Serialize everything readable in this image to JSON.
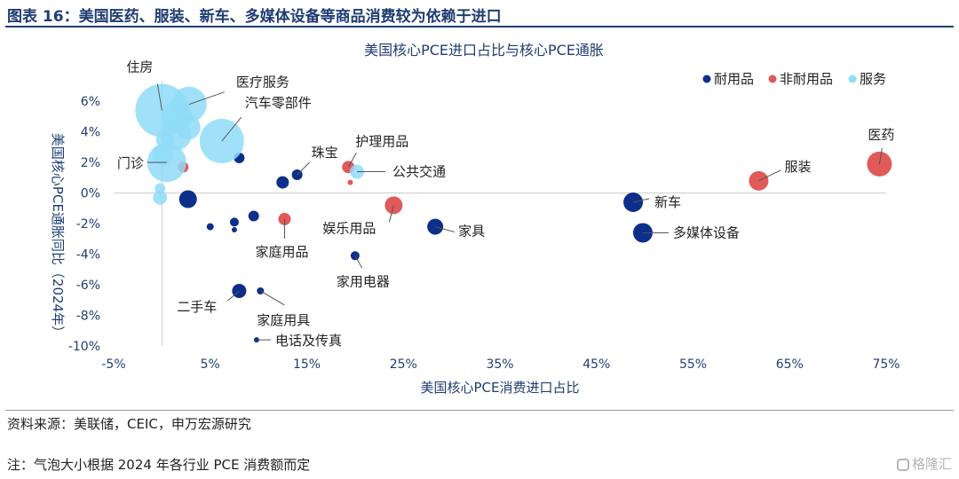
{
  "figure_title": "图表 16：美国医药、服装、新车、多媒体设备等商品消费较为依赖于进口",
  "source": "资料来源：美联储，CEIC，申万宏源研究",
  "note": "注：气泡大小根据 2024 年各行业 PCE 消费额而定",
  "watermark": "格隆汇",
  "colors": {
    "title": "#1f3d73",
    "durable": "#0d2f8a",
    "nondurable": "#e05a5a",
    "services": "#8fdcf8"
  },
  "chart_data": {
    "type": "scatter",
    "title": "美国核心PCE进口占比与核心PCE通胀",
    "xlabel": "美国核心PCE消费进口占比",
    "ylabel": "美国核心PCE通胀同比（2024年）",
    "xlim": [
      -5,
      75
    ],
    "ylim": [
      -10,
      7
    ],
    "x_ticks": [
      "-5%",
      "5%",
      "15%",
      "25%",
      "35%",
      "45%",
      "55%",
      "65%",
      "75%"
    ],
    "y_ticks": [
      "6%",
      "4%",
      "2%",
      "0%",
      "-2%",
      "-4%",
      "-6%",
      "-8%",
      "-10%"
    ],
    "legend_position": "top-right",
    "series": [
      {
        "name": "耐用品",
        "points": [
          {
            "x": 8,
            "y": 2.3,
            "size": 6,
            "label": ""
          },
          {
            "x": 12.5,
            "y": 0.7,
            "size": 7,
            "label": ""
          },
          {
            "x": 14,
            "y": 1.2,
            "size": 6,
            "label": "珠宝"
          },
          {
            "x": 2.7,
            "y": -0.4,
            "size": 10,
            "label": ""
          },
          {
            "x": 5,
            "y": -2.2,
            "size": 4,
            "label": ""
          },
          {
            "x": 7.5,
            "y": -1.9,
            "size": 5,
            "label": ""
          },
          {
            "x": 7.5,
            "y": -2.4,
            "size": 3,
            "label": ""
          },
          {
            "x": 9.5,
            "y": -1.5,
            "size": 6,
            "label": ""
          },
          {
            "x": 28.3,
            "y": -2.2,
            "size": 9,
            "label": "家具"
          },
          {
            "x": 20,
            "y": -4.1,
            "size": 5,
            "label": "家用电器"
          },
          {
            "x": 48.8,
            "y": -0.6,
            "size": 11,
            "label": "新车"
          },
          {
            "x": 49.8,
            "y": -2.6,
            "size": 11,
            "label": "多媒体设备"
          },
          {
            "x": 8,
            "y": -6.4,
            "size": 8,
            "label": "二手车"
          },
          {
            "x": 10.2,
            "y": -6.4,
            "size": 4,
            "label": "家庭用具"
          },
          {
            "x": 9.8,
            "y": -9.6,
            "size": 3,
            "label": "电话及传真"
          }
        ]
      },
      {
        "name": "非耐用品",
        "points": [
          {
            "x": 2.2,
            "y": 1.7,
            "size": 6,
            "label": ""
          },
          {
            "x": 12.7,
            "y": -1.7,
            "size": 7,
            "label": "家庭用品"
          },
          {
            "x": 19.3,
            "y": 1.7,
            "size": 7,
            "label": "护理用品"
          },
          {
            "x": 19.5,
            "y": 0.7,
            "size": 3,
            "label": ""
          },
          {
            "x": 24,
            "y": -0.8,
            "size": 10,
            "label": "娱乐用品"
          },
          {
            "x": 61.8,
            "y": 0.8,
            "size": 11,
            "label": "服装"
          },
          {
            "x": 74.3,
            "y": 1.9,
            "size": 14,
            "label": "医药"
          }
        ]
      },
      {
        "name": "服务",
        "points": [
          {
            "x": 0,
            "y": 5.4,
            "size": 30,
            "label": "住房"
          },
          {
            "x": 2.8,
            "y": 5.8,
            "size": 20,
            "label": "医疗服务"
          },
          {
            "x": 1.5,
            "y": 5.0,
            "size": 18,
            "label": ""
          },
          {
            "x": 2.7,
            "y": 4.3,
            "size": 14,
            "label": ""
          },
          {
            "x": 1.5,
            "y": 3.8,
            "size": 17,
            "label": ""
          },
          {
            "x": 0.3,
            "y": 3.5,
            "size": 10,
            "label": ""
          },
          {
            "x": 0.1,
            "y": 2.5,
            "size": 12,
            "label": ""
          },
          {
            "x": 0.5,
            "y": 2.0,
            "size": 22,
            "label": "门诊"
          },
          {
            "x": -0.2,
            "y": 0.3,
            "size": 6,
            "label": ""
          },
          {
            "x": -0.2,
            "y": -0.3,
            "size": 8,
            "label": ""
          },
          {
            "x": 6.2,
            "y": 3.4,
            "size": 25,
            "label": "汽车零部件"
          },
          {
            "x": 20.2,
            "y": 1.4,
            "size": 8,
            "label": "公共交通"
          }
        ]
      }
    ]
  }
}
